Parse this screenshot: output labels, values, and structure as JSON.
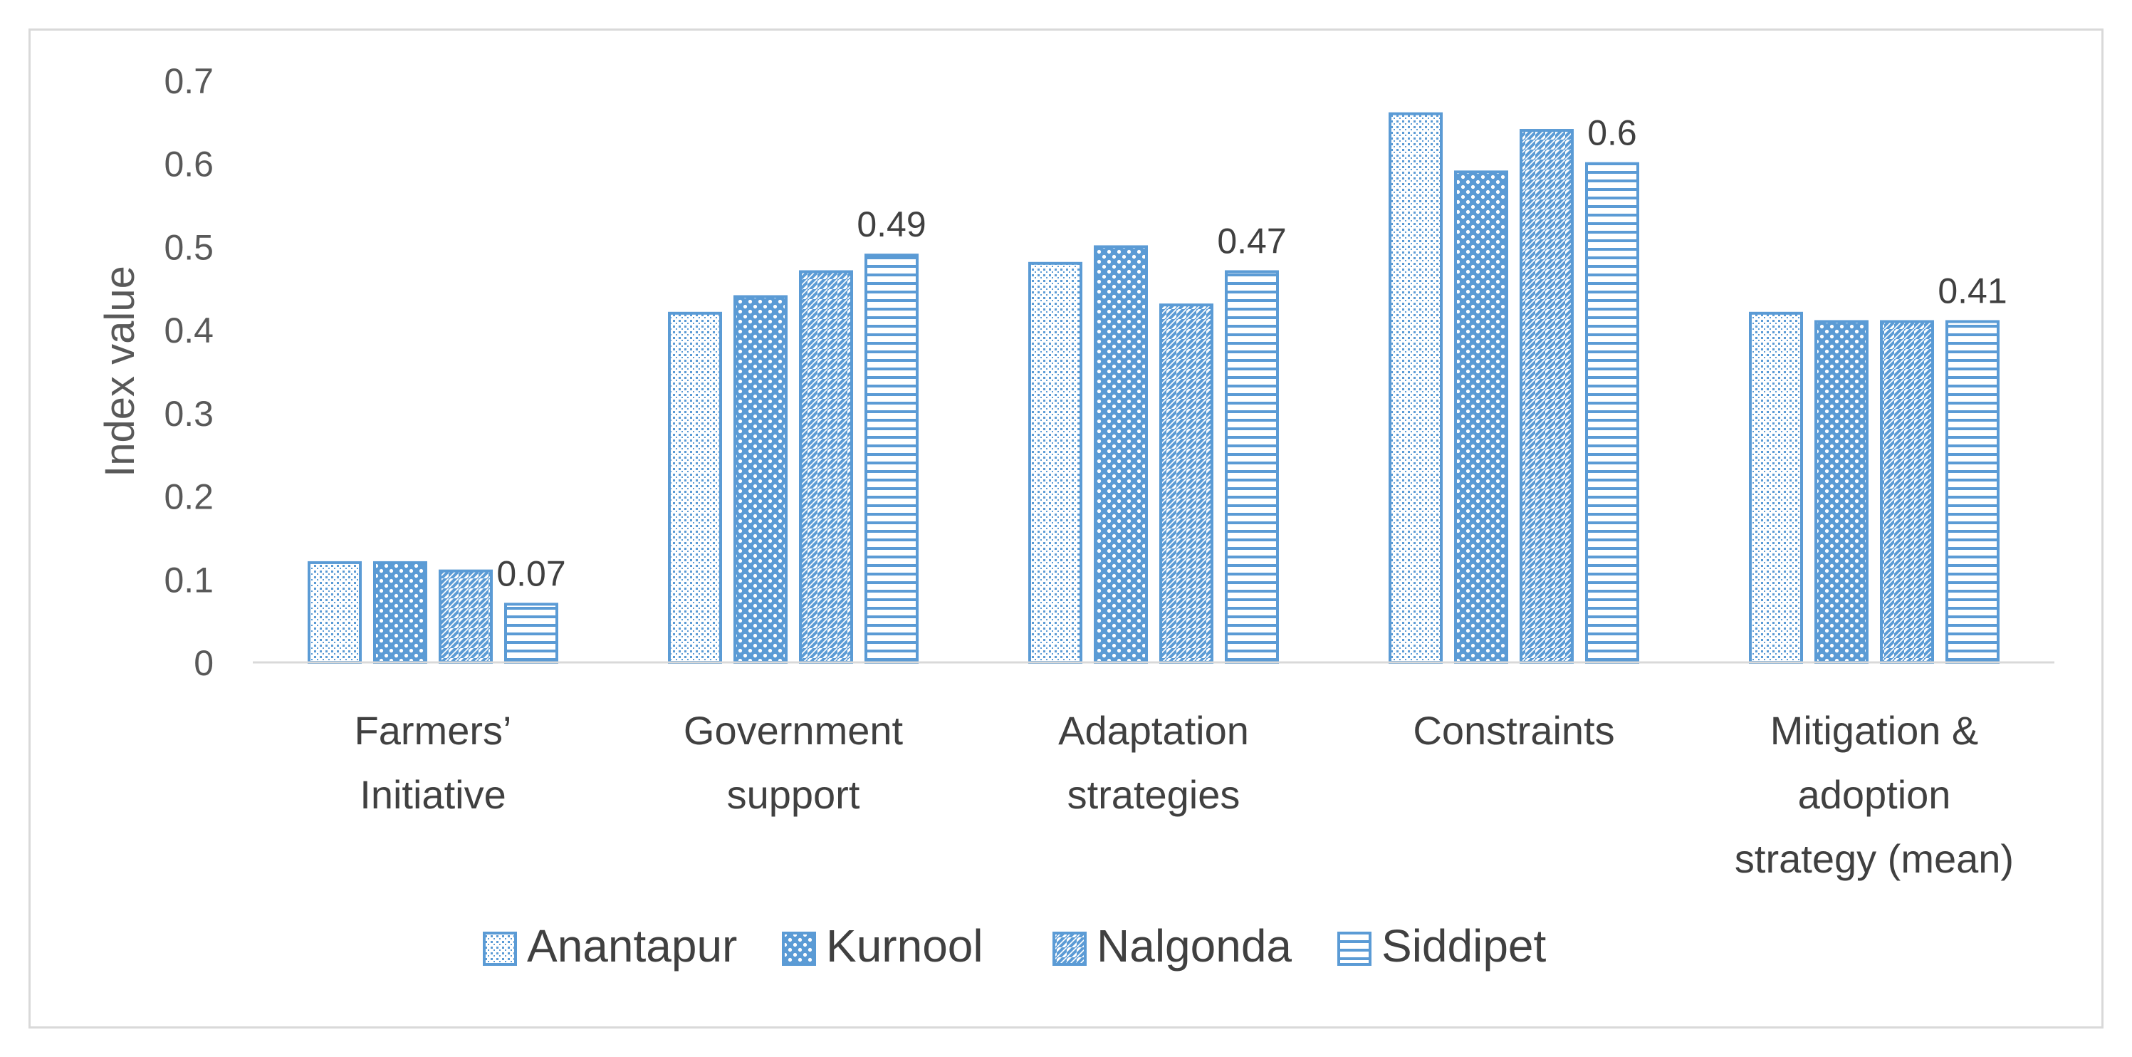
{
  "chart_data": {
    "type": "bar",
    "title": "",
    "xlabel": "",
    "ylabel": "Index value",
    "ylim": [
      0,
      0.7
    ],
    "yticks": [
      "0",
      "0.1",
      "0.2",
      "0.3",
      "0.4",
      "0.5",
      "0.6",
      "0.7"
    ],
    "grid": false,
    "legend_position": "bottom",
    "categories": [
      [
        "Farmers’",
        "Initiative"
      ],
      [
        "Government",
        "support"
      ],
      [
        "Adaptation",
        "strategies"
      ],
      [
        "Constraints"
      ],
      [
        "Mitigation &",
        "adoption",
        "strategy (mean)"
      ]
    ],
    "series": [
      {
        "name": "Anantapur",
        "pattern": "dots-small",
        "values": [
          0.12,
          0.42,
          0.48,
          0.66,
          0.42
        ]
      },
      {
        "name": "Kurnool",
        "pattern": "dots-large",
        "values": [
          0.12,
          0.44,
          0.5,
          0.59,
          0.41
        ]
      },
      {
        "name": "Nalgonda",
        "pattern": "diagonal",
        "values": [
          0.11,
          0.47,
          0.43,
          0.64,
          0.41
        ]
      },
      {
        "name": "Siddipet",
        "pattern": "horizontal",
        "values": [
          0.07,
          0.49,
          0.47,
          0.6,
          0.41
        ]
      }
    ],
    "data_labels": [
      {
        "series": "Siddipet",
        "category_index": 0,
        "text": "0.07"
      },
      {
        "series": "Siddipet",
        "category_index": 1,
        "text": "0.49"
      },
      {
        "series": "Siddipet",
        "category_index": 2,
        "text": "0.47"
      },
      {
        "series": "Siddipet",
        "category_index": 3,
        "text": "0.6"
      },
      {
        "series": "Siddipet",
        "category_index": 4,
        "text": "0.41"
      }
    ],
    "colors": {
      "bar": "#5b9bd5",
      "axis": "#d9d9d9",
      "frame": "#d9d9d9"
    }
  }
}
